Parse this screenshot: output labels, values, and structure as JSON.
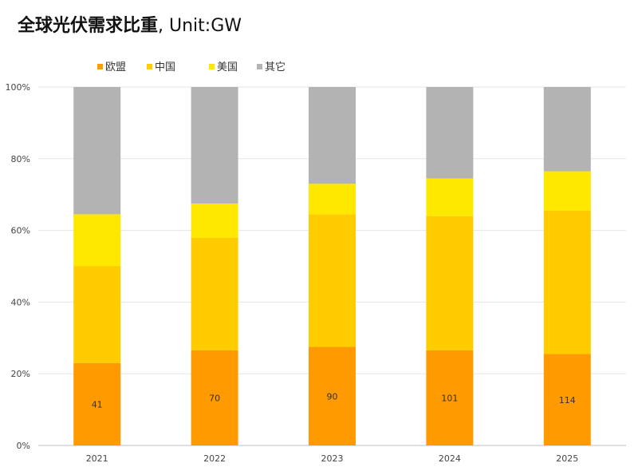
{
  "title": "全球光伏需求比重",
  "title_unit": ", Unit:GW",
  "chart_data": {
    "type": "bar",
    "stacked": true,
    "normalized": true,
    "categories": [
      "2021",
      "2022",
      "2023",
      "2024",
      "2025"
    ],
    "series": [
      {
        "name": "欧盟",
        "color": "#FF9A00",
        "values": [
          23,
          26.5,
          27.5,
          26.5,
          25.5
        ]
      },
      {
        "name": "中国",
        "color": "#FFCC00",
        "values": [
          27,
          31.5,
          37,
          37.5,
          40
        ]
      },
      {
        "name": "美国",
        "color": "#FFE800",
        "values": [
          14.5,
          9.5,
          8.5,
          10.5,
          11
        ]
      },
      {
        "name": "其它",
        "color": "#B3B3B3",
        "values": [
          35.5,
          32.5,
          27,
          25.5,
          23.5
        ]
      }
    ],
    "data_labels": [
      "41",
      "70",
      "90",
      "101",
      "114"
    ],
    "y_ticks": [
      "0%",
      "20%",
      "40%",
      "60%",
      "80%",
      "100%"
    ],
    "ylim": [
      0,
      100
    ],
    "grid": true,
    "legend_position": "top-left"
  }
}
